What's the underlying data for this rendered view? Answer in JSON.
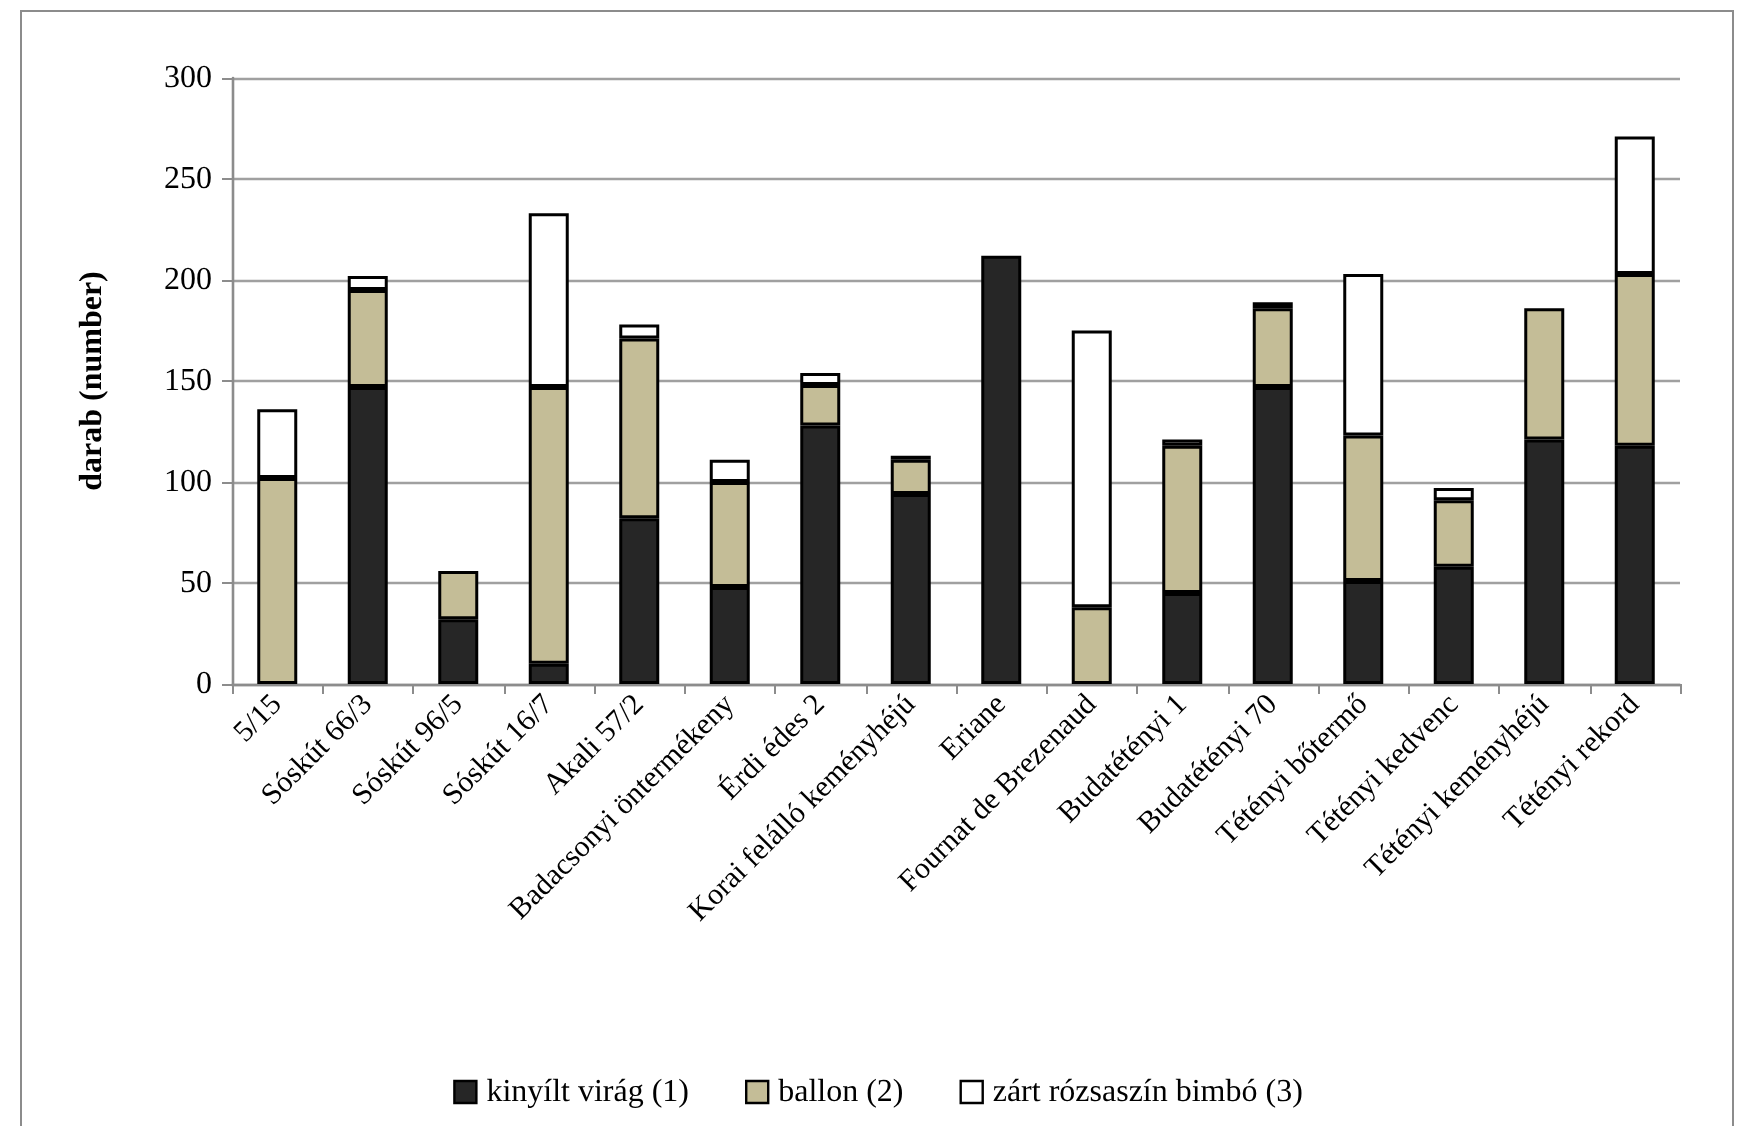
{
  "chart_data": {
    "type": "bar",
    "stacked": true,
    "ylabel": "darab (number)",
    "categories": [
      "5/15",
      "Sóskút 66/3",
      "Sóskút 96/5",
      "Sóskút 16/7",
      "Akali 57/2",
      "Badacsonyi öntermékeny",
      "Érdi édes 2",
      "Korai felálló keményhéjú",
      "Eriane",
      "Fournat de Brezenaud",
      "Budatétényi 1",
      "Budatétényi 70",
      "Tétényi bőtermő",
      "Tétényi kedvenc",
      "Tétényi keményhéjú",
      "Tétényi rekord"
    ],
    "series": [
      {
        "name": "kinyílt virág (1)",
        "color": "#262626",
        "values": [
          null,
          147,
          32,
          10,
          82,
          48,
          128,
          94,
          212,
          null,
          45,
          147,
          51,
          58,
          121,
          118
        ]
      },
      {
        "name": "ballon (2)",
        "color": "#c4bd97",
        "values": [
          102,
          48,
          24,
          137,
          89,
          52,
          20,
          17,
          null,
          38,
          73,
          39,
          72,
          33,
          65,
          85
        ]
      },
      {
        "name": "zárt rózsaszín bimbó (3)",
        "color": "#ffffff",
        "values": [
          34,
          7,
          null,
          86,
          7,
          11,
          6,
          2,
          null,
          137,
          3,
          3,
          80,
          6,
          null,
          68
        ]
      }
    ],
    "ylim": [
      0,
      300
    ],
    "yticks": [
      0,
      50,
      100,
      150,
      200,
      250,
      300
    ],
    "grid": "y",
    "legend": "bottom"
  }
}
